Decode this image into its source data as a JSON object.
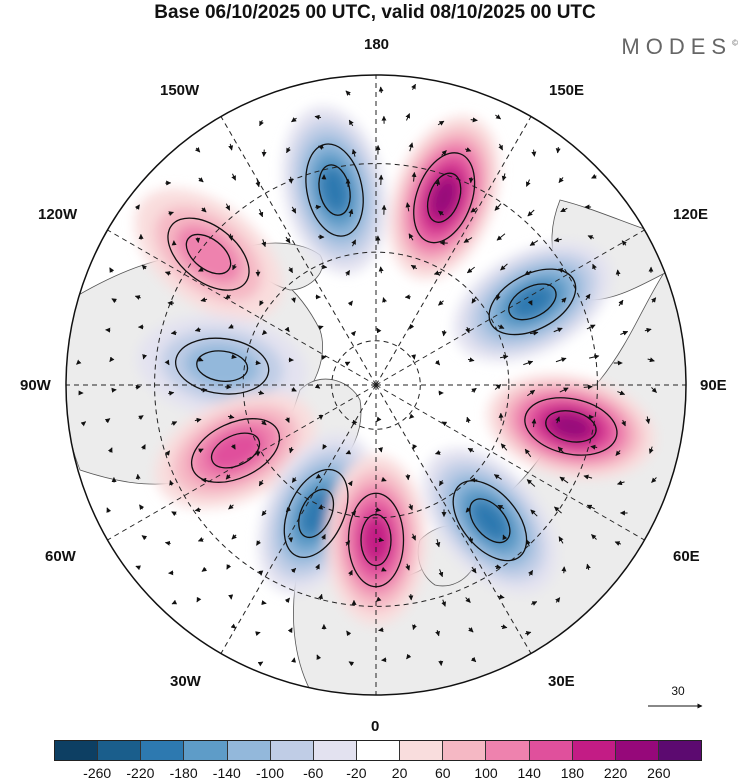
{
  "title": "Base 06/10/2025 00 UTC, valid 08/10/2025 00 UTC",
  "brand": "MODES",
  "brand_mark": "©",
  "longitude_labels": {
    "top": "180",
    "bottom": "0",
    "left": "90W",
    "right": "90E",
    "upper_left_1": "150W",
    "upper_left_2": "120W",
    "upper_right_1": "150E",
    "upper_right_2": "120E",
    "lower_left_1": "60W",
    "lower_left_2": "30W",
    "lower_right_1": "60E",
    "lower_right_2": "30E"
  },
  "reference_vector": "30",
  "colorbar": {
    "ticks": [
      "-260",
      "-220",
      "-180",
      "-140",
      "-100",
      "-60",
      "-20",
      "20",
      "60",
      "100",
      "140",
      "180",
      "220",
      "260"
    ],
    "colors": [
      "#0d3f63",
      "#1a5e8c",
      "#2d79b0",
      "#5e9cc8",
      "#93b8db",
      "#c0cde6",
      "#e3e2f0",
      "#ffffff",
      "#f9dddd",
      "#f5b8c4",
      "#ee82ae",
      "#e0509c",
      "#c31c85",
      "#96087a",
      "#5c0a70"
    ]
  },
  "anomaly_centres": [
    {
      "name": "pos-150w",
      "value": 240,
      "lon": 160,
      "lat": 45
    },
    {
      "name": "neg-170e",
      "value": -200,
      "lon": -168,
      "lat": 45
    },
    {
      "name": "pos-130e",
      "value": 120,
      "lon": -128,
      "lat": 42
    },
    {
      "name": "neg-100e",
      "value": -120,
      "lon": -97,
      "lat": 55
    },
    {
      "name": "pos-70e",
      "value": 180,
      "lon": -65,
      "lat": 55
    },
    {
      "name": "neg-35e",
      "value": -200,
      "lon": -25,
      "lat": 58
    },
    {
      "name": "pos-0",
      "value": 200,
      "lon": 0,
      "lat": 55
    },
    {
      "name": "neg-40w",
      "value": -220,
      "lon": 40,
      "lat": 50
    },
    {
      "name": "pos-85w",
      "value": 260,
      "lon": 78,
      "lat": 45
    },
    {
      "name": "neg-115w",
      "value": -220,
      "lon": 118,
      "lat": 50
    }
  ]
}
